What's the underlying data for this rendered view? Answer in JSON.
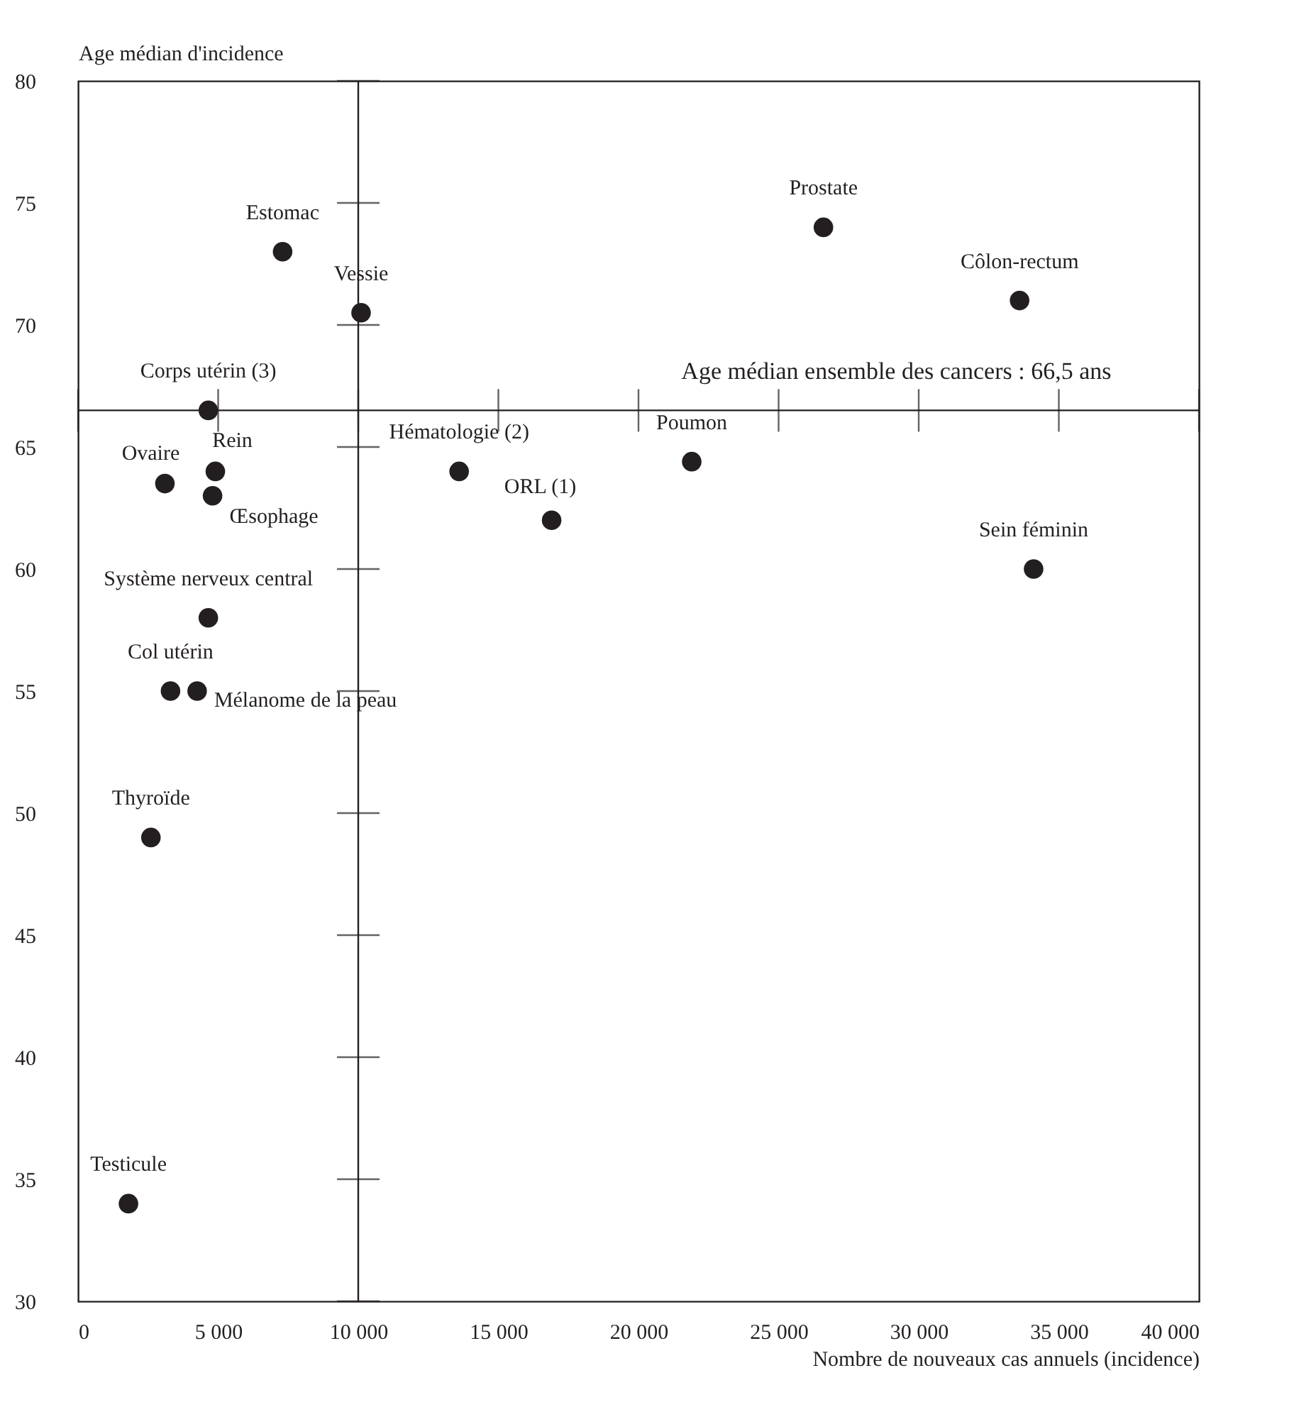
{
  "chart_data": {
    "type": "scatter",
    "xlabel": "Nombre de nouveaux cas annuels (incidence)",
    "ylabel": "Age médian d'incidence",
    "x": [
      7300,
      10100,
      4650,
      4900,
      3100,
      4800,
      13600,
      4650,
      3300,
      4250,
      2600,
      1800,
      26600,
      33600,
      21900,
      16900,
      34100
    ],
    "values": [
      73,
      70.5,
      66.5,
      64,
      63.5,
      63,
      64,
      58,
      55,
      55,
      49,
      34,
      74,
      71,
      64.4,
      62,
      60
    ],
    "color": "#231f20",
    "marker": "circle",
    "annotations": [
      {
        "text": "Estomac",
        "x": 7300,
        "y": 73
      },
      {
        "text": "Vessie",
        "x": 10100,
        "y": 70.5
      },
      {
        "text": "Corps utérin (3)",
        "x": 4650,
        "y": 66.5
      },
      {
        "text": "Rein",
        "x": 4900,
        "y": 64
      },
      {
        "text": "Ovaire",
        "x": 3100,
        "y": 63.5
      },
      {
        "text": "Œsophage",
        "x": 4800,
        "y": 63
      },
      {
        "text": "Hématologie (2)",
        "x": 13600,
        "y": 64
      },
      {
        "text": "Système nerveux central",
        "x": 4650,
        "y": 58
      },
      {
        "text": "Col utérin",
        "x": 3300,
        "y": 55
      },
      {
        "text": "Mélanome de la peau",
        "x": 4250,
        "y": 55
      },
      {
        "text": "Thyroïde",
        "x": 2600,
        "y": 49
      },
      {
        "text": "Testicule",
        "x": 1800,
        "y": 34
      },
      {
        "text": "Prostate",
        "x": 26600,
        "y": 74
      },
      {
        "text": "Côlon-rectum",
        "x": 33600,
        "y": 71
      },
      {
        "text": "Poumon",
        "x": 21900,
        "y": 64.4
      },
      {
        "text": "ORL (1)",
        "x": 16900,
        "y": 62
      },
      {
        "text": "Sein féminin",
        "x": 34100,
        "y": 60
      }
    ],
    "ref_lines": [
      {
        "axis": "y",
        "value": 66.5,
        "label": "Age médian ensemble des cancers : 66,5 ans"
      },
      {
        "axis": "x",
        "value": 10000
      }
    ],
    "xlim": [
      0,
      40000
    ],
    "xticks": [
      0,
      {
        "value": 5000,
        "label": "5 000"
      },
      {
        "value": 10000,
        "label": "10 000"
      },
      {
        "value": 15000,
        "label": "15 000"
      },
      {
        "value": 20000,
        "label": "20 000"
      },
      {
        "value": 25000,
        "label": "25 000"
      },
      {
        "value": 30000,
        "label": "30 000"
      },
      {
        "value": 35000,
        "label": "35 000"
      },
      {
        "value": 40000,
        "label": "40 000"
      }
    ],
    "ylim": [
      30,
      80
    ],
    "yticks": [
      30,
      35,
      40,
      45,
      50,
      55,
      60,
      65,
      70,
      75,
      80
    ],
    "grid": false
  }
}
